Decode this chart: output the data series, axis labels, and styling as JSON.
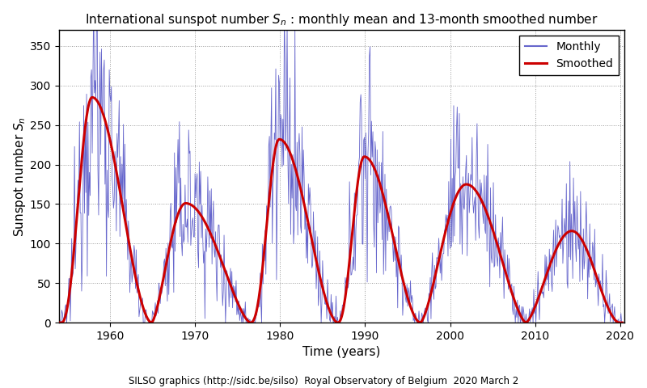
{
  "title": "International sunspot number $S_n$ : monthly mean and 13-month smoothed number",
  "xlabel": "Time (years)",
  "ylabel": "Sunspot number $S_n$",
  "footnote": "SILSO graphics (http://sidc.be/silso)  Royal Observatory of Belgium  2020 March 2",
  "xlim": [
    1954.0,
    2020.5
  ],
  "ylim": [
    0,
    370
  ],
  "yticks": [
    0,
    50,
    100,
    150,
    200,
    250,
    300,
    350
  ],
  "xticks": [
    1960,
    1970,
    1980,
    1990,
    2000,
    2010,
    2020
  ],
  "monthly_color": "#6666cc",
  "smoothed_color": "#cc0000",
  "monthly_lw": 0.6,
  "smoothed_lw": 2.2,
  "legend_monthly": "Monthly",
  "legend_smoothed": "Smoothed",
  "bg_color": "#ffffff",
  "grid_color": "#999999",
  "fig_width": 8.0,
  "fig_height": 4.8,
  "dpi": 100,
  "cycles": [
    {
      "t_min1": 1954.3,
      "t_max": 1957.9,
      "t_min2": 1964.9,
      "peak": 285,
      "rise_shape": 2.2,
      "fall_shape": 1.8
    },
    {
      "t_min1": 1964.9,
      "t_max": 1968.9,
      "t_min2": 1976.5,
      "peak": 151,
      "rise_shape": 1.5,
      "fall_shape": 1.5
    },
    {
      "t_min1": 1976.5,
      "t_max": 1979.9,
      "t_min2": 1986.8,
      "peak": 232,
      "rise_shape": 2.5,
      "fall_shape": 1.8
    },
    {
      "t_min1": 1986.8,
      "t_max": 1989.9,
      "t_min2": 1996.5,
      "peak": 210,
      "rise_shape": 2.2,
      "fall_shape": 1.8
    },
    {
      "t_min1": 1996.5,
      "t_max": 2001.9,
      "t_min2": 2008.9,
      "peak": 175,
      "rise_shape": 1.5,
      "fall_shape": 1.5
    },
    {
      "t_min1": 2008.9,
      "t_max": 2014.3,
      "t_min2": 2019.9,
      "peak": 116,
      "rise_shape": 1.5,
      "fall_shape": 1.8
    }
  ]
}
